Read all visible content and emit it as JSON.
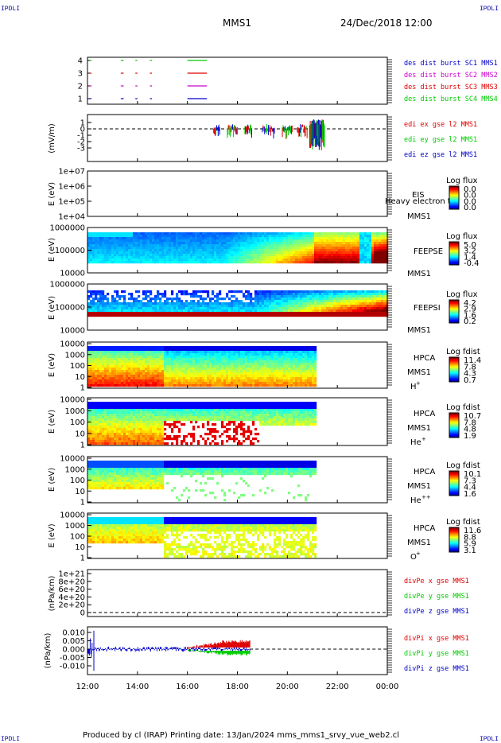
{
  "header": {
    "corner_label": "IPDLI",
    "spacecraft": "MMS1",
    "datetime": "24/Dec/2018 12:00"
  },
  "footer": {
    "text": "Produced by cl (IRAP)   Printing date: 13/Jan/2024   mms_mms1_srvy_vue_web2.cl"
  },
  "colors": {
    "red": "#e00000",
    "green": "#00cc00",
    "blue": "#0000cc",
    "magenta": "#cc00cc",
    "label_blue": "#0000aa"
  },
  "chart_data": [
    {
      "type": "line",
      "panel": "burst-availability",
      "yticks": [
        "1",
        "2",
        "3",
        "4"
      ],
      "xlim": [
        "12:00",
        "00:00"
      ],
      "series": [
        {
          "name": "des dist burst SC1 MMS1",
          "color": "#0000cc",
          "level": 1,
          "segments": [
            [
              "12:05",
              "12:07"
            ],
            [
              "13:20",
              "13:25"
            ],
            [
              "13:55",
              "13:58"
            ],
            [
              "14:30",
              "14:33"
            ],
            [
              "16:00",
              "16:45"
            ]
          ]
        },
        {
          "name": "des dist burst SC2 MMS2",
          "color": "#cc00cc",
          "level": 2,
          "segments": [
            [
              "12:05",
              "12:07"
            ],
            [
              "13:20",
              "13:25"
            ],
            [
              "13:55",
              "13:58"
            ],
            [
              "14:30",
              "14:33"
            ],
            [
              "16:00",
              "16:45"
            ]
          ]
        },
        {
          "name": "des dist burst SC3 MMS3",
          "color": "#e00000",
          "level": 3,
          "segments": [
            [
              "12:05",
              "12:07"
            ],
            [
              "13:20",
              "13:25"
            ],
            [
              "13:55",
              "13:58"
            ],
            [
              "14:30",
              "14:33"
            ],
            [
              "16:00",
              "16:45"
            ]
          ]
        },
        {
          "name": "des dist burst SC4 MMS4",
          "color": "#00cc00",
          "level": 4,
          "segments": [
            [
              "12:05",
              "12:07"
            ],
            [
              "13:20",
              "13:25"
            ],
            [
              "13:55",
              "13:58"
            ],
            [
              "14:30",
              "14:33"
            ],
            [
              "16:00",
              "16:45"
            ]
          ]
        }
      ]
    },
    {
      "type": "line",
      "panel": "edi-electric-field",
      "ylabel": "(mV/m)",
      "yticks": [
        "1",
        "0",
        "-1",
        "-2",
        "-3"
      ],
      "ylim": [
        -3.5,
        1.5
      ],
      "zero_line": true,
      "series": [
        {
          "name": "edi ex gse l2 MMS1",
          "color": "#e00000"
        },
        {
          "name": "edi ey gse l2 MMS1",
          "color": "#00cc00"
        },
        {
          "name": "edi ez gse l2 MMS1",
          "color": "#0000cc"
        }
      ]
    },
    {
      "type": "heatmap",
      "panel": "eis",
      "ylabel": "E (eV)",
      "yticks": [
        "1e+07",
        "1e+06",
        "1e+05",
        "1e+04"
      ],
      "log_scale": true,
      "instrument": "EIS",
      "sublabel": "MMS1",
      "overlap_text": "Heavy electron to",
      "colorbar_title": "Log flux",
      "colorbar_ticks": [
        "0.0",
        "0.0",
        "0.0",
        "0.0"
      ]
    },
    {
      "type": "heatmap",
      "panel": "feepse",
      "ylabel": "E (eV)",
      "yticks": [
        "1000000",
        "100000",
        "10000"
      ],
      "log_scale": true,
      "instrument": "FEEPSE",
      "sublabel": "MMS1",
      "colorbar_title": "Log flux",
      "colorbar_ticks": [
        "5.0",
        "3.2",
        "1.4",
        "-0.4"
      ]
    },
    {
      "type": "heatmap",
      "panel": "feepsi",
      "ylabel": "E (eV)",
      "yticks": [
        "1000000",
        "100000",
        "10000"
      ],
      "log_scale": true,
      "instrument": "FEEPSI",
      "sublabel": "MMS1",
      "colorbar_title": "Log flux",
      "colorbar_ticks": [
        "4.2",
        "2.9",
        "1.6",
        "0.2"
      ]
    },
    {
      "type": "heatmap",
      "panel": "hpca-h",
      "ylabel": "E (eV)",
      "yticks": [
        "10000",
        "1000",
        "100",
        "10",
        "1"
      ],
      "log_scale": true,
      "instrument": "HPCA",
      "sublabel": "MMS1",
      "species": "H",
      "charge": "+",
      "colorbar_title": "Log fdist",
      "colorbar_ticks": [
        "11.4",
        "7.8",
        "4.3",
        "0.7"
      ]
    },
    {
      "type": "heatmap",
      "panel": "hpca-he",
      "ylabel": "E (eV)",
      "yticks": [
        "10000",
        "1000",
        "100",
        "10",
        "1"
      ],
      "log_scale": true,
      "instrument": "HPCA",
      "sublabel": "MMS1",
      "species": "He",
      "charge": "+",
      "colorbar_title": "Log fdist",
      "colorbar_ticks": [
        "10.7",
        "7.8",
        "4.8",
        "1.9"
      ]
    },
    {
      "type": "heatmap",
      "panel": "hpca-hepp",
      "ylabel": "E (eV)",
      "yticks": [
        "10000",
        "1000",
        "100",
        "10",
        "1"
      ],
      "log_scale": true,
      "instrument": "HPCA",
      "sublabel": "MMS1",
      "species": "He",
      "charge": "++",
      "colorbar_title": "Log fdist",
      "colorbar_ticks": [
        "10.1",
        "7.3",
        "4.4",
        "1.6"
      ]
    },
    {
      "type": "heatmap",
      "panel": "hpca-o",
      "ylabel": "E (eV)",
      "yticks": [
        "10000",
        "1000",
        "100",
        "10",
        "1"
      ],
      "log_scale": true,
      "instrument": "HPCA",
      "sublabel": "MMS1",
      "species": "O",
      "charge": "+",
      "colorbar_title": "Log fdist",
      "colorbar_ticks": [
        "11.6",
        "8.8",
        "5.9",
        "3.1"
      ]
    },
    {
      "type": "line",
      "panel": "divpe",
      "ylabel": "(nPa/km)",
      "yticks": [
        "1e+21",
        "8e+20",
        "6e+20",
        "4e+20",
        "2e+20",
        "0"
      ],
      "ylim": [
        0,
        1.1e+21
      ],
      "zero_line": true,
      "series": [
        {
          "name": "divPe x gse MMS1",
          "color": "#e00000"
        },
        {
          "name": "divPe y gse MMS1",
          "color": "#00cc00"
        },
        {
          "name": "divPe z gse MMS1",
          "color": "#0000cc"
        }
      ]
    },
    {
      "type": "line",
      "panel": "divpi",
      "ylabel": "(nPa/km)",
      "yticks": [
        "0.010",
        "0.005",
        "0.000",
        "-0.005",
        "-0.010"
      ],
      "ylim": [
        -0.015,
        0.014
      ],
      "zero_line": true,
      "series": [
        {
          "name": "divPi x gse MMS1",
          "color": "#e00000",
          "x": [
            "16:00",
            "16:30",
            "17:00",
            "17:30",
            "18:00",
            "18:30"
          ],
          "values": [
            0.0,
            0.001,
            0.003,
            0.004,
            0.005,
            0.005
          ]
        },
        {
          "name": "divPi y gse MMS1",
          "color": "#00cc00",
          "x": [
            "16:00",
            "16:30",
            "17:00",
            "17:30",
            "18:00",
            "18:30"
          ],
          "values": [
            0.0,
            -0.001,
            -0.002,
            -0.003,
            -0.003,
            -0.003
          ]
        },
        {
          "name": "divPi z gse MMS1",
          "color": "#0000cc",
          "x": [
            "12:00",
            "13:00",
            "14:00",
            "15:00",
            "16:00",
            "17:00",
            "18:00",
            "18:30"
          ],
          "values": [
            0.0,
            0.0,
            0.0,
            0.0,
            0.001,
            0.0,
            -0.001,
            0.0
          ]
        }
      ]
    }
  ],
  "x_axis": {
    "ticks": [
      "12:00",
      "14:00",
      "16:00",
      "18:00",
      "20:00",
      "22:00",
      "00:00"
    ]
  }
}
